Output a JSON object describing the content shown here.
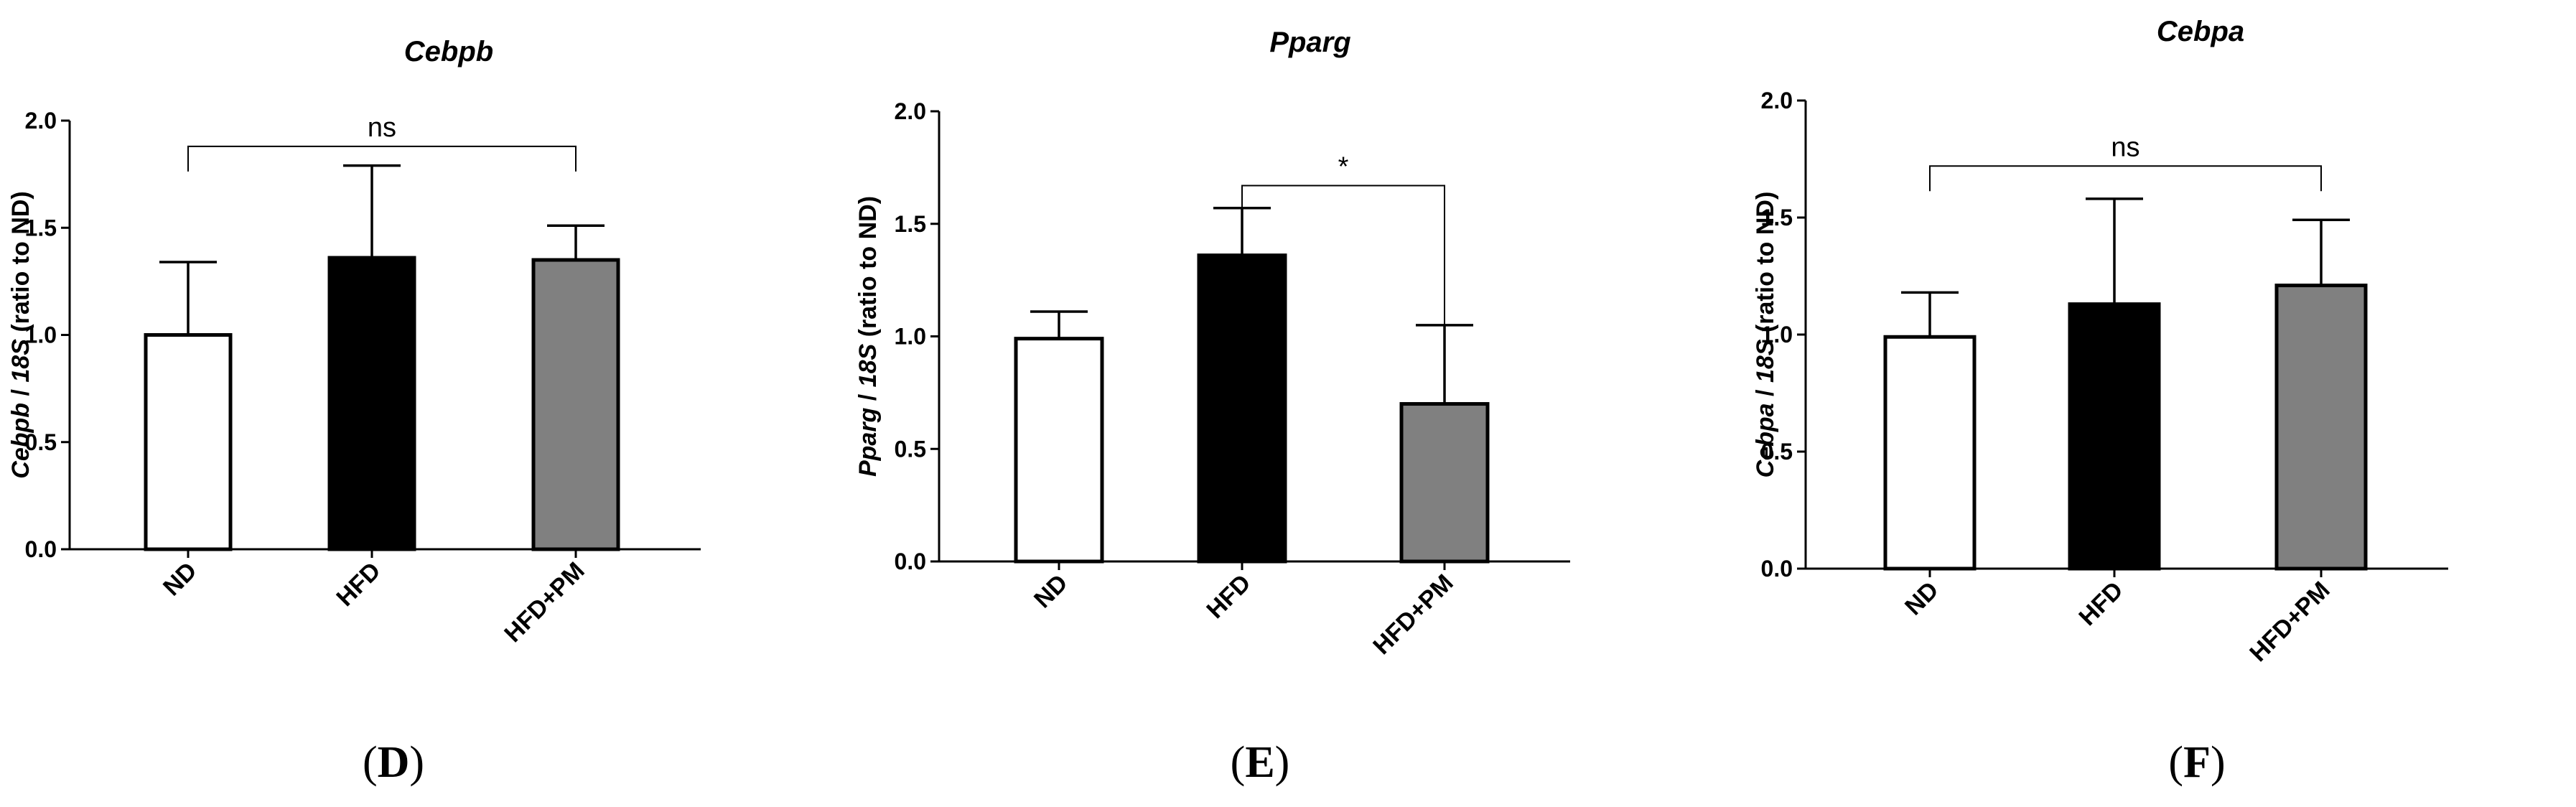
{
  "chart_data": [
    {
      "type": "bar",
      "panel": "D",
      "title": "Cebpb",
      "ylabel_gene": "Cebpb",
      "ylabel_rest": " (ratio to ND)",
      "ylabel_ref": "18S",
      "ylabel_sep": " / ",
      "categories": [
        "ND",
        "HFD",
        "HFD+PM"
      ],
      "values": [
        1.0,
        1.36,
        1.35
      ],
      "errors": [
        0.34,
        0.43,
        0.16
      ],
      "bar_colors": [
        "#ffffff",
        "#000000",
        "#808080"
      ],
      "ylim": [
        0,
        2.0
      ],
      "yticks": [
        "0.0",
        "0.5",
        "1.0",
        "1.5",
        "2.0"
      ],
      "significance": {
        "from": 0,
        "to": 2,
        "label": "ns",
        "y": 1.88
      }
    },
    {
      "type": "bar",
      "panel": "E",
      "title": "Pparg",
      "ylabel_gene": "Pparg",
      "ylabel_rest": " (ratio to ND)",
      "ylabel_ref": "18S",
      "ylabel_sep": " / ",
      "categories": [
        "ND",
        "HFD",
        "HFD+PM"
      ],
      "values": [
        0.99,
        1.36,
        0.7
      ],
      "errors": [
        0.12,
        0.21,
        0.35
      ],
      "bar_colors": [
        "#ffffff",
        "#000000",
        "#808080"
      ],
      "ylim": [
        0,
        2.0
      ],
      "yticks": [
        "0.0",
        "0.5",
        "1.0",
        "1.5",
        "2.0"
      ],
      "significance": {
        "from": 1,
        "to": 2,
        "label": "*",
        "y": 1.67
      }
    },
    {
      "type": "bar",
      "panel": "F",
      "title": "Cebpa",
      "ylabel_gene": "Cebpa",
      "ylabel_rest": " (ratio to ND)",
      "ylabel_ref": "18S",
      "ylabel_sep": " / ",
      "categories": [
        "ND",
        "HFD",
        "HFD+PM"
      ],
      "values": [
        0.99,
        1.13,
        1.21
      ],
      "errors": [
        0.19,
        0.45,
        0.28
      ],
      "bar_colors": [
        "#ffffff",
        "#000000",
        "#808080"
      ],
      "ylim": [
        0,
        2.0
      ],
      "yticks": [
        "0.0",
        "0.5",
        "1.0",
        "1.5",
        "2.0"
      ],
      "significance": {
        "from": 0,
        "to": 2,
        "label": "ns",
        "y": 1.72
      }
    }
  ],
  "panel_labels": [
    {
      "open": "(",
      "letter": "D",
      "close": ")"
    },
    {
      "open": "(",
      "letter": "E",
      "close": ")"
    },
    {
      "open": "(",
      "letter": "F",
      "close": ")"
    }
  ]
}
